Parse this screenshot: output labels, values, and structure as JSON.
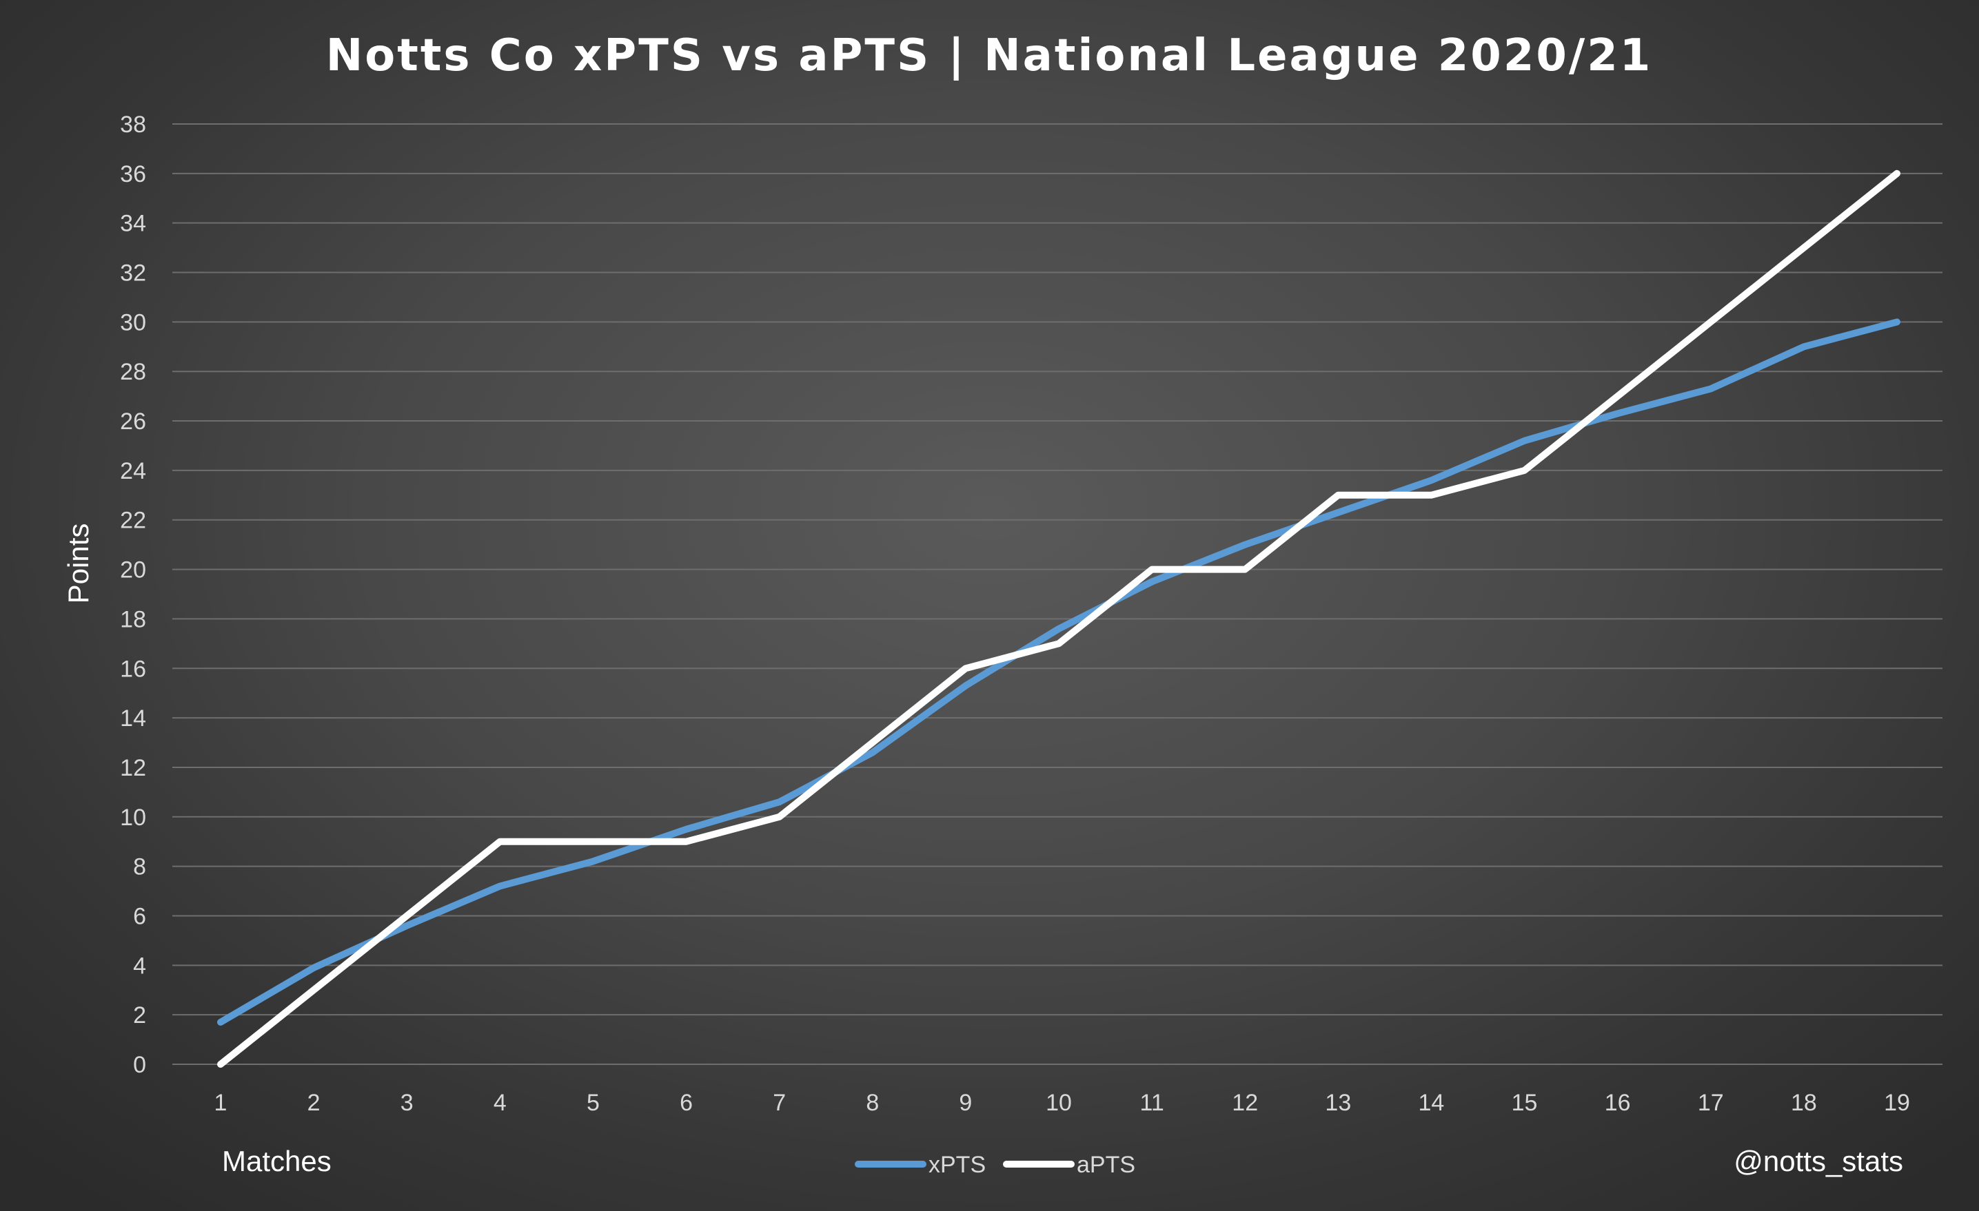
{
  "chart_data": {
    "type": "line",
    "title": "Notts Co xPTS vs aPTS | National League 2020/21",
    "xlabel": "Matches",
    "ylabel": "Points",
    "credit": "@notts_stats",
    "x": [
      "1",
      "2",
      "3",
      "4",
      "5",
      "6",
      "7",
      "8",
      "9",
      "10",
      "11",
      "12",
      "13",
      "14",
      "15",
      "16",
      "17",
      "18",
      "19"
    ],
    "y_ticks": [
      "0",
      "2",
      "4",
      "6",
      "8",
      "10",
      "12",
      "14",
      "16",
      "18",
      "20",
      "22",
      "24",
      "26",
      "28",
      "30",
      "32",
      "34",
      "36",
      "38"
    ],
    "ylim": [
      0,
      38
    ],
    "grid": true,
    "legend_position": "bottom",
    "series": [
      {
        "name": "xPTS",
        "color": "#5b9bd5",
        "values": [
          1.7,
          3.9,
          5.6,
          7.2,
          8.2,
          9.5,
          10.6,
          12.6,
          15.3,
          17.6,
          19.5,
          21.0,
          22.3,
          23.6,
          25.2,
          26.3,
          27.3,
          29.0,
          30.0
        ]
      },
      {
        "name": "aPTS",
        "color": "#ffffff",
        "values": [
          0,
          3,
          6,
          9,
          9,
          9,
          10,
          13,
          16,
          17,
          20,
          20,
          23,
          23,
          24,
          27,
          30,
          33,
          36
        ]
      }
    ]
  },
  "colors": {
    "gridline": "#6e6e6e",
    "tick_text": "#d9d9d9"
  }
}
